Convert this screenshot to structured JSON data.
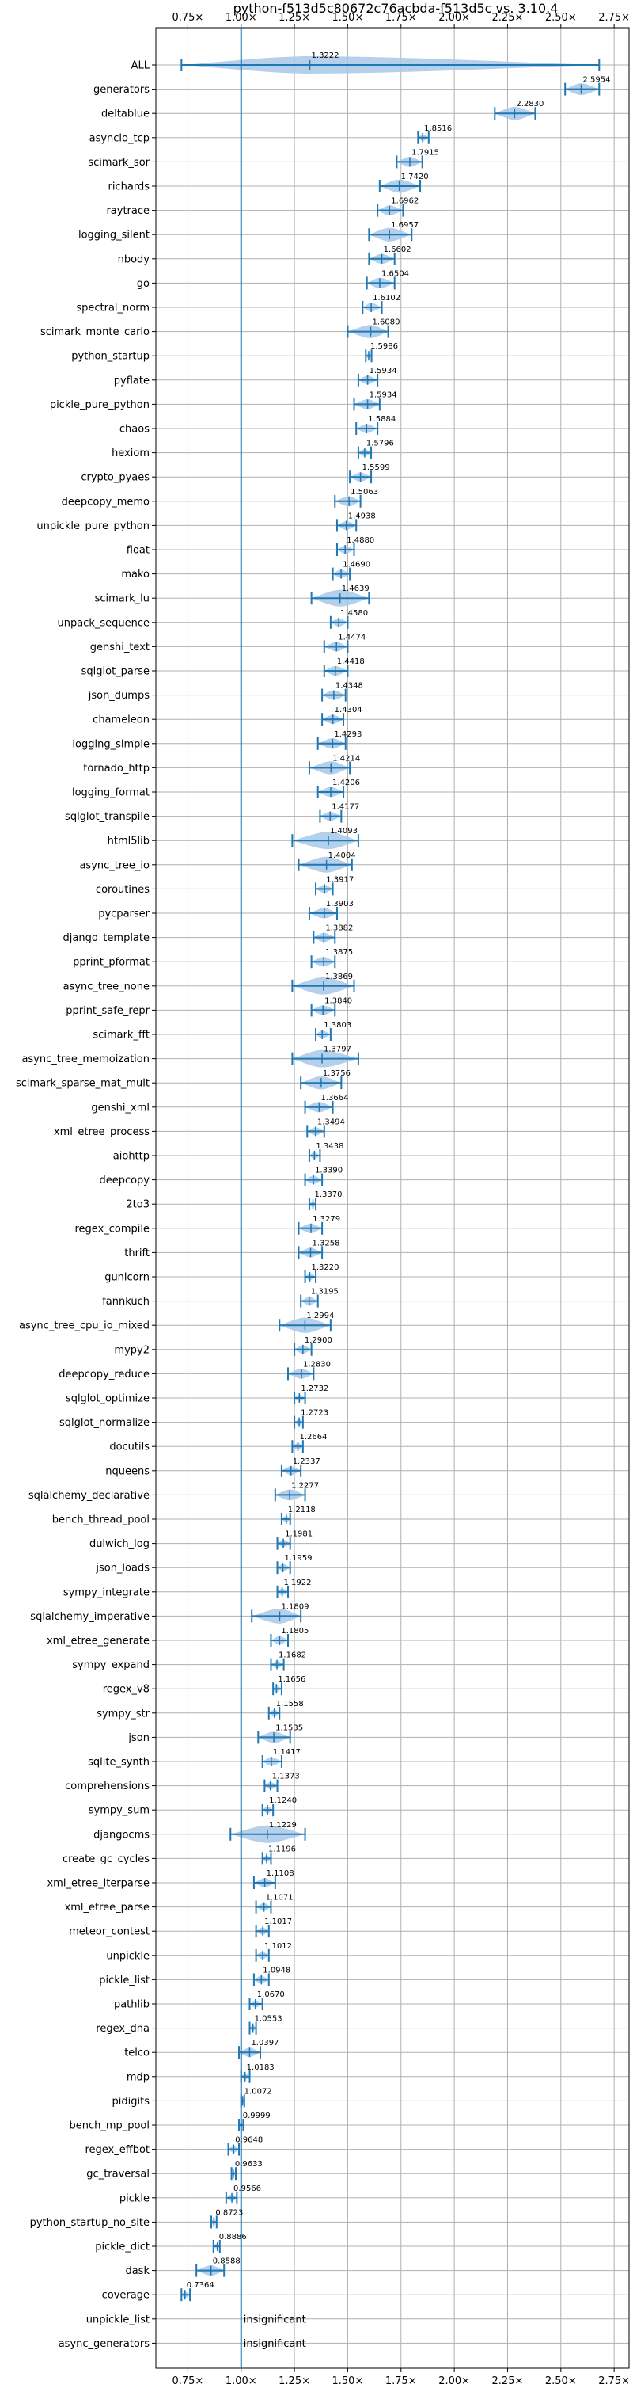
{
  "chart_data": {
    "type": "violin",
    "title": "python-f513d5c80672c76acbda-f513d5c vs. 3.10.4",
    "xlim": [
      0.6,
      2.82
    ],
    "x_ticks": [
      0.75,
      1.0,
      1.25,
      1.5,
      1.75,
      2.0,
      2.25,
      2.5,
      2.75
    ],
    "x_tick_labels": [
      "0.75×",
      "1.00×",
      "1.25×",
      "1.50×",
      "1.75×",
      "2.00×",
      "2.25×",
      "2.50×",
      "2.75×"
    ],
    "reference_line": 1.0,
    "grid": true,
    "colors": {
      "accent": "#1f77b4",
      "violin": "#a8c8e6",
      "grid": "#b0b0b0"
    },
    "benchmarks": [
      {
        "name": "ALL",
        "value": 1.3222,
        "label": "1.3222",
        "min": 0.72,
        "max": 2.68
      },
      {
        "name": "generators",
        "value": 2.5954,
        "label": "2.5954",
        "min": 2.52,
        "max": 2.68
      },
      {
        "name": "deltablue",
        "value": 2.283,
        "label": "2.2830",
        "min": 2.19,
        "max": 2.38
      },
      {
        "name": "asyncio_tcp",
        "value": 1.8516,
        "label": "1.8516",
        "min": 1.83,
        "max": 1.88
      },
      {
        "name": "scimark_sor",
        "value": 1.7915,
        "label": "1.7915",
        "min": 1.73,
        "max": 1.85
      },
      {
        "name": "richards",
        "value": 1.742,
        "label": "1.7420",
        "min": 1.65,
        "max": 1.84
      },
      {
        "name": "raytrace",
        "value": 1.6962,
        "label": "1.6962",
        "min": 1.64,
        "max": 1.76
      },
      {
        "name": "logging_silent",
        "value": 1.6957,
        "label": "1.6957",
        "min": 1.6,
        "max": 1.8
      },
      {
        "name": "nbody",
        "value": 1.6602,
        "label": "1.6602",
        "min": 1.6,
        "max": 1.72
      },
      {
        "name": "go",
        "value": 1.6504,
        "label": "1.6504",
        "min": 1.59,
        "max": 1.72
      },
      {
        "name": "spectral_norm",
        "value": 1.6102,
        "label": "1.6102",
        "min": 1.57,
        "max": 1.66
      },
      {
        "name": "scimark_monte_carlo",
        "value": 1.608,
        "label": "1.6080",
        "min": 1.5,
        "max": 1.69
      },
      {
        "name": "python_startup",
        "value": 1.5986,
        "label": "1.5986",
        "min": 1.585,
        "max": 1.612
      },
      {
        "name": "pyflate",
        "value": 1.5934,
        "label": "1.5934",
        "min": 1.55,
        "max": 1.64
      },
      {
        "name": "pickle_pure_python",
        "value": 1.5934,
        "label": "1.5934",
        "min": 1.53,
        "max": 1.65
      },
      {
        "name": "chaos",
        "value": 1.5884,
        "label": "1.5884",
        "min": 1.54,
        "max": 1.64
      },
      {
        "name": "hexiom",
        "value": 1.5796,
        "label": "1.5796",
        "min": 1.55,
        "max": 1.61
      },
      {
        "name": "crypto_pyaes",
        "value": 1.5599,
        "label": "1.5599",
        "min": 1.51,
        "max": 1.61
      },
      {
        "name": "deepcopy_memo",
        "value": 1.5063,
        "label": "1.5063",
        "min": 1.44,
        "max": 1.56
      },
      {
        "name": "unpickle_pure_python",
        "value": 1.4938,
        "label": "1.4938",
        "min": 1.45,
        "max": 1.54
      },
      {
        "name": "float",
        "value": 1.488,
        "label": "1.4880",
        "min": 1.45,
        "max": 1.53
      },
      {
        "name": "mako",
        "value": 1.469,
        "label": "1.4690",
        "min": 1.43,
        "max": 1.51
      },
      {
        "name": "scimark_lu",
        "value": 1.4639,
        "label": "1.4639",
        "min": 1.33,
        "max": 1.6
      },
      {
        "name": "unpack_sequence",
        "value": 1.458,
        "label": "1.4580",
        "min": 1.42,
        "max": 1.5
      },
      {
        "name": "genshi_text",
        "value": 1.4474,
        "label": "1.4474",
        "min": 1.39,
        "max": 1.5
      },
      {
        "name": "sqlglot_parse",
        "value": 1.4418,
        "label": "1.4418",
        "min": 1.39,
        "max": 1.5
      },
      {
        "name": "json_dumps",
        "value": 1.4348,
        "label": "1.4348",
        "min": 1.38,
        "max": 1.49
      },
      {
        "name": "chameleon",
        "value": 1.4304,
        "label": "1.4304",
        "min": 1.38,
        "max": 1.48
      },
      {
        "name": "logging_simple",
        "value": 1.4293,
        "label": "1.4293",
        "min": 1.36,
        "max": 1.49
      },
      {
        "name": "tornado_http",
        "value": 1.4214,
        "label": "1.4214",
        "min": 1.32,
        "max": 1.51
      },
      {
        "name": "logging_format",
        "value": 1.4206,
        "label": "1.4206",
        "min": 1.36,
        "max": 1.48
      },
      {
        "name": "sqlglot_transpile",
        "value": 1.4177,
        "label": "1.4177",
        "min": 1.37,
        "max": 1.47
      },
      {
        "name": "html5lib",
        "value": 1.4093,
        "label": "1.4093",
        "min": 1.24,
        "max": 1.55
      },
      {
        "name": "async_tree_io",
        "value": 1.4004,
        "label": "1.4004",
        "min": 1.27,
        "max": 1.52
      },
      {
        "name": "coroutines",
        "value": 1.3917,
        "label": "1.3917",
        "min": 1.35,
        "max": 1.43
      },
      {
        "name": "pycparser",
        "value": 1.3903,
        "label": "1.3903",
        "min": 1.32,
        "max": 1.45
      },
      {
        "name": "django_template",
        "value": 1.3882,
        "label": "1.3882",
        "min": 1.34,
        "max": 1.44
      },
      {
        "name": "pprint_pformat",
        "value": 1.3875,
        "label": "1.3875",
        "min": 1.33,
        "max": 1.44
      },
      {
        "name": "async_tree_none",
        "value": 1.3869,
        "label": "1.3869",
        "min": 1.24,
        "max": 1.53
      },
      {
        "name": "pprint_safe_repr",
        "value": 1.384,
        "label": "1.3840",
        "min": 1.33,
        "max": 1.44
      },
      {
        "name": "scimark_fft",
        "value": 1.3803,
        "label": "1.3803",
        "min": 1.35,
        "max": 1.42
      },
      {
        "name": "async_tree_memoization",
        "value": 1.3797,
        "label": "1.3797",
        "min": 1.24,
        "max": 1.55
      },
      {
        "name": "scimark_sparse_mat_mult",
        "value": 1.3756,
        "label": "1.3756",
        "min": 1.28,
        "max": 1.47
      },
      {
        "name": "genshi_xml",
        "value": 1.3664,
        "label": "1.3664",
        "min": 1.3,
        "max": 1.43
      },
      {
        "name": "xml_etree_process",
        "value": 1.3494,
        "label": "1.3494",
        "min": 1.31,
        "max": 1.39
      },
      {
        "name": "aiohttp",
        "value": 1.3438,
        "label": "1.3438",
        "min": 1.32,
        "max": 1.37
      },
      {
        "name": "deepcopy",
        "value": 1.339,
        "label": "1.3390",
        "min": 1.3,
        "max": 1.38
      },
      {
        "name": "2to3",
        "value": 1.337,
        "label": "1.3370",
        "min": 1.32,
        "max": 1.35
      },
      {
        "name": "regex_compile",
        "value": 1.3279,
        "label": "1.3279",
        "min": 1.27,
        "max": 1.38
      },
      {
        "name": "thrift",
        "value": 1.3258,
        "label": "1.3258",
        "min": 1.27,
        "max": 1.38
      },
      {
        "name": "gunicorn",
        "value": 1.322,
        "label": "1.3220",
        "min": 1.3,
        "max": 1.35
      },
      {
        "name": "fannkuch",
        "value": 1.3195,
        "label": "1.3195",
        "min": 1.28,
        "max": 1.36
      },
      {
        "name": "async_tree_cpu_io_mixed",
        "value": 1.2994,
        "label": "1.2994",
        "min": 1.18,
        "max": 1.42
      },
      {
        "name": "mypy2",
        "value": 1.29,
        "label": "1.2900",
        "min": 1.25,
        "max": 1.33
      },
      {
        "name": "deepcopy_reduce",
        "value": 1.283,
        "label": "1.2830",
        "min": 1.22,
        "max": 1.34
      },
      {
        "name": "sqlglot_optimize",
        "value": 1.2732,
        "label": "1.2732",
        "min": 1.25,
        "max": 1.3
      },
      {
        "name": "sqlglot_normalize",
        "value": 1.2723,
        "label": "1.2723",
        "min": 1.25,
        "max": 1.29
      },
      {
        "name": "docutils",
        "value": 1.2664,
        "label": "1.2664",
        "min": 1.24,
        "max": 1.29
      },
      {
        "name": "nqueens",
        "value": 1.2337,
        "label": "1.2337",
        "min": 1.19,
        "max": 1.28
      },
      {
        "name": "sqlalchemy_declarative",
        "value": 1.2277,
        "label": "1.2277",
        "min": 1.16,
        "max": 1.3
      },
      {
        "name": "bench_thread_pool",
        "value": 1.2118,
        "label": "1.2118",
        "min": 1.19,
        "max": 1.23
      },
      {
        "name": "dulwich_log",
        "value": 1.1981,
        "label": "1.1981",
        "min": 1.17,
        "max": 1.23
      },
      {
        "name": "json_loads",
        "value": 1.1959,
        "label": "1.1959",
        "min": 1.17,
        "max": 1.23
      },
      {
        "name": "sympy_integrate",
        "value": 1.1922,
        "label": "1.1922",
        "min": 1.17,
        "max": 1.22
      },
      {
        "name": "sqlalchemy_imperative",
        "value": 1.1809,
        "label": "1.1809",
        "min": 1.05,
        "max": 1.28
      },
      {
        "name": "xml_etree_generate",
        "value": 1.1805,
        "label": "1.1805",
        "min": 1.14,
        "max": 1.22
      },
      {
        "name": "sympy_expand",
        "value": 1.1682,
        "label": "1.1682",
        "min": 1.14,
        "max": 1.2
      },
      {
        "name": "regex_v8",
        "value": 1.1656,
        "label": "1.1656",
        "min": 1.15,
        "max": 1.19
      },
      {
        "name": "sympy_str",
        "value": 1.1558,
        "label": "1.1558",
        "min": 1.13,
        "max": 1.18
      },
      {
        "name": "json",
        "value": 1.1535,
        "label": "1.1535",
        "min": 1.08,
        "max": 1.23
      },
      {
        "name": "sqlite_synth",
        "value": 1.1417,
        "label": "1.1417",
        "min": 1.1,
        "max": 1.19
      },
      {
        "name": "comprehensions",
        "value": 1.1373,
        "label": "1.1373",
        "min": 1.11,
        "max": 1.17
      },
      {
        "name": "sympy_sum",
        "value": 1.124,
        "label": "1.1240",
        "min": 1.1,
        "max": 1.15
      },
      {
        "name": "djangocms",
        "value": 1.1229,
        "label": "1.1229",
        "min": 0.95,
        "max": 1.3
      },
      {
        "name": "create_gc_cycles",
        "value": 1.1196,
        "label": "1.1196",
        "min": 1.1,
        "max": 1.14
      },
      {
        "name": "xml_etree_iterparse",
        "value": 1.1108,
        "label": "1.1108",
        "min": 1.06,
        "max": 1.16
      },
      {
        "name": "xml_etree_parse",
        "value": 1.1071,
        "label": "1.1071",
        "min": 1.07,
        "max": 1.14
      },
      {
        "name": "meteor_contest",
        "value": 1.1017,
        "label": "1.1017",
        "min": 1.07,
        "max": 1.13
      },
      {
        "name": "unpickle",
        "value": 1.1012,
        "label": "1.1012",
        "min": 1.07,
        "max": 1.13
      },
      {
        "name": "pickle_list",
        "value": 1.0948,
        "label": "1.0948",
        "min": 1.06,
        "max": 1.13
      },
      {
        "name": "pathlib",
        "value": 1.067,
        "label": "1.0670",
        "min": 1.04,
        "max": 1.1
      },
      {
        "name": "regex_dna",
        "value": 1.0553,
        "label": "1.0553",
        "min": 1.04,
        "max": 1.07
      },
      {
        "name": "telco",
        "value": 1.0397,
        "label": "1.0397",
        "min": 0.99,
        "max": 1.09
      },
      {
        "name": "mdp",
        "value": 1.0183,
        "label": "1.0183",
        "min": 1.0,
        "max": 1.04
      },
      {
        "name": "pidigits",
        "value": 1.0072,
        "label": "1.0072",
        "min": 1.0,
        "max": 1.015
      },
      {
        "name": "bench_mp_pool",
        "value": 0.9999,
        "label": "0.9999",
        "min": 0.99,
        "max": 1.01
      },
      {
        "name": "regex_effbot",
        "value": 0.9648,
        "label": "0.9648",
        "min": 0.94,
        "max": 0.99
      },
      {
        "name": "gc_traversal",
        "value": 0.9633,
        "label": "0.9633",
        "min": 0.955,
        "max": 0.975
      },
      {
        "name": "pickle",
        "value": 0.9566,
        "label": "0.9566",
        "min": 0.93,
        "max": 0.98
      },
      {
        "name": "python_startup_no_site",
        "value": 0.8723,
        "label": "0.8723",
        "min": 0.86,
        "max": 0.885
      },
      {
        "name": "pickle_dict",
        "value": 0.8886,
        "label": "0.8886",
        "min": 0.87,
        "max": 0.9
      },
      {
        "name": "dask",
        "value": 0.8588,
        "label": "0.8588",
        "min": 0.79,
        "max": 0.92
      },
      {
        "name": "coverage",
        "value": 0.7364,
        "label": "0.7364",
        "min": 0.72,
        "max": 0.76
      },
      {
        "name": "unpickle_list",
        "value": null,
        "label": "insignificant"
      },
      {
        "name": "async_generators",
        "value": null,
        "label": "insignificant"
      }
    ]
  }
}
